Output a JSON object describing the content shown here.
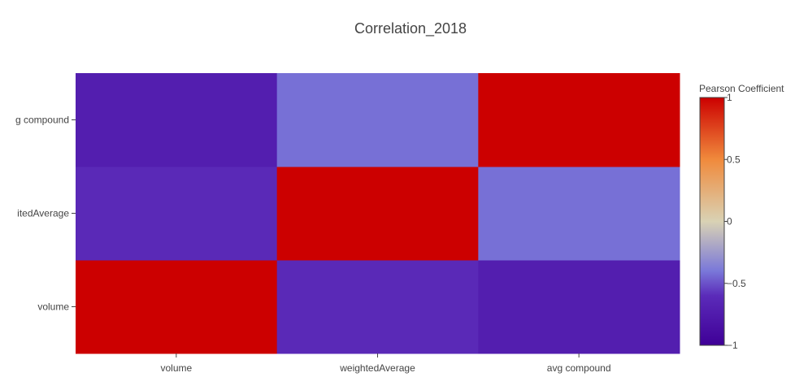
{
  "chart_data": {
    "type": "heatmap",
    "title": "Correlation_2018",
    "x_categories": [
      "volume",
      "weightedAverage",
      "avg compound"
    ],
    "y_categories": [
      "volume",
      "weightedAverage",
      "avg compound"
    ],
    "z": [
      [
        1.0,
        -0.62,
        -0.72
      ],
      [
        -0.62,
        1.0,
        -0.42
      ],
      [
        -0.72,
        -0.42,
        1.0
      ]
    ],
    "y_tick_labels_shown": [
      "volume",
      "itedAverage",
      "g compound"
    ],
    "colorbar": {
      "title": "Pearson Coefficient",
      "range": [
        -1,
        1
      ],
      "tick_values": [
        1,
        0.5,
        0,
        -0.5,
        -1
      ],
      "tick_labels": [
        "1",
        "0.5",
        "0",
        "−0.5",
        "−1"
      ],
      "colorscale": [
        [
          0.0,
          "#3f0097"
        ],
        [
          0.2,
          "#5b2bb9"
        ],
        [
          0.3,
          "#7a78d9"
        ],
        [
          0.5,
          "#d9d2b4"
        ],
        [
          0.75,
          "#f08a3c"
        ],
        [
          1.0,
          "#cc0000"
        ]
      ]
    }
  }
}
